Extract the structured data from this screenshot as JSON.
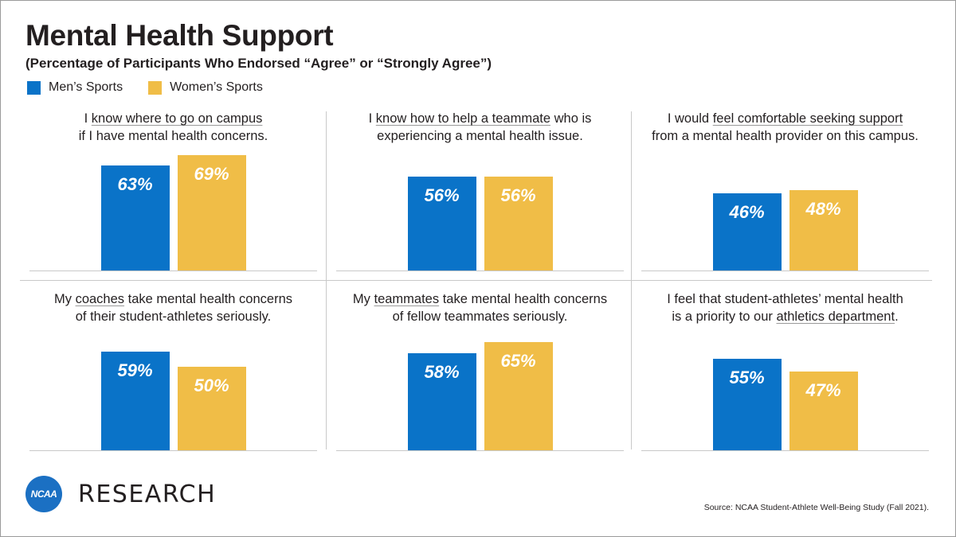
{
  "title": "Mental Health Support",
  "subtitle": "(Percentage of Participants Who Endorsed “Agree” or “Strongly Agree”)",
  "legend": [
    {
      "label": "Men’s Sports",
      "color": "#0a73c8"
    },
    {
      "label": "Women’s Sports",
      "color": "#f0bd47"
    }
  ],
  "chart_data": {
    "type": "bar",
    "series": [
      {
        "name": "Men’s Sports",
        "color": "#0a73c8"
      },
      {
        "name": "Women’s Sports",
        "color": "#f0bd47"
      }
    ],
    "ylim": [
      0,
      100
    ],
    "panels": [
      {
        "title_line1": [
          {
            "t": "I ",
            "u": false
          },
          {
            "t": "know where to go on campus",
            "u": true
          }
        ],
        "title_line2": [
          {
            "t": "if I have mental health concerns.",
            "u": false
          }
        ],
        "values": [
          63,
          69
        ],
        "labels": [
          "63%",
          "69%"
        ]
      },
      {
        "title_line1": [
          {
            "t": "I ",
            "u": false
          },
          {
            "t": "know how to help a teammate",
            "u": true
          },
          {
            "t": " who is",
            "u": false
          }
        ],
        "title_line2": [
          {
            "t": "experiencing a mental health issue.",
            "u": false
          }
        ],
        "values": [
          56,
          56
        ],
        "labels": [
          "56%",
          "56%"
        ]
      },
      {
        "title_line1": [
          {
            "t": "I would ",
            "u": false
          },
          {
            "t": "feel comfortable seeking support",
            "u": true
          }
        ],
        "title_line2": [
          {
            "t": "from a mental health provider on this campus.",
            "u": false
          }
        ],
        "values": [
          46,
          48
        ],
        "labels": [
          "46%",
          "48%"
        ]
      },
      {
        "title_line1": [
          {
            "t": "My ",
            "u": false
          },
          {
            "t": "coaches",
            "u": true
          },
          {
            "t": " take mental health concerns",
            "u": false
          }
        ],
        "title_line2": [
          {
            "t": "of their student-athletes seriously.",
            "u": false
          }
        ],
        "values": [
          59,
          50
        ],
        "labels": [
          "59%",
          "50%"
        ]
      },
      {
        "title_line1": [
          {
            "t": "My ",
            "u": false
          },
          {
            "t": "teammates",
            "u": true
          },
          {
            "t": " take mental health concerns",
            "u": false
          }
        ],
        "title_line2": [
          {
            "t": "of fellow teammates seriously.",
            "u": false
          }
        ],
        "values": [
          58,
          65
        ],
        "labels": [
          "58%",
          "65%"
        ]
      },
      {
        "title_line1": [
          {
            "t": "I feel that student-athletes’ mental health",
            "u": false
          }
        ],
        "title_line2": [
          {
            "t": "is a priority to our ",
            "u": false
          },
          {
            "t": "athletics department",
            "u": true
          },
          {
            "t": ".",
            "u": false
          }
        ],
        "values": [
          55,
          47
        ],
        "labels": [
          "55%",
          "47%"
        ]
      }
    ]
  },
  "logo": {
    "badge": "NCAA",
    "text": "RESEARCH"
  },
  "source": "Source: NCAA Student-Athlete Well-Being Study (Fall 2021)."
}
